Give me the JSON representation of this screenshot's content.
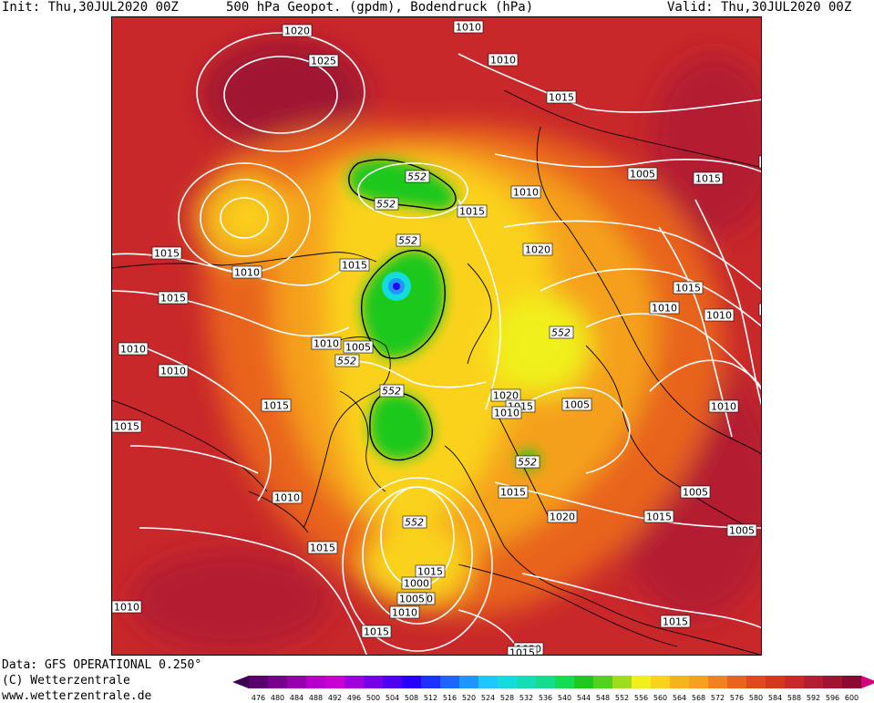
{
  "header": {
    "init": "Init: Thu,30JUL2020 00Z",
    "title": "500 hPa Geopot. (gpdm), Bodendruck (hPa)",
    "valid": "Valid: Thu,30JUL2020 00Z"
  },
  "footer": {
    "data_source": "Data: GFS OPERATIONAL 0.250°",
    "copyright": "(C) Wetterzentrale",
    "url": "www.wetterzentrale.de"
  },
  "colors": {
    "background_warm": "#c8282a",
    "ring_orange": "#e8641e",
    "ring_amber": "#f5a01e",
    "ring_yellow": "#fad21e",
    "trough_green": "#1ec81e",
    "trough_core": "#1e64ff",
    "contour": "#ffffff",
    "coast": "#000000"
  },
  "colorbar": {
    "labels": [
      "476",
      "480",
      "484",
      "488",
      "492",
      "496",
      "500",
      "504",
      "508",
      "512",
      "516",
      "520",
      "524",
      "528",
      "532",
      "536",
      "540",
      "544",
      "548",
      "552",
      "556",
      "560",
      "564",
      "568",
      "572",
      "576",
      "580",
      "584",
      "588",
      "592",
      "596",
      "600"
    ],
    "colors": [
      "#5a006e",
      "#78008c",
      "#9600aa",
      "#b400c8",
      "#c800d2",
      "#a000dc",
      "#7800e6",
      "#5000f0",
      "#2800fa",
      "#1e32ff",
      "#1e64ff",
      "#1e96ff",
      "#1ec8ff",
      "#14dcdc",
      "#14dcb4",
      "#14dc8c",
      "#14dc50",
      "#1ec81e",
      "#50d21e",
      "#a0dc1e",
      "#f0f01e",
      "#fad21e",
      "#f5b41e",
      "#f5a01e",
      "#ef821e",
      "#e8641e",
      "#de4a1e",
      "#d4371e",
      "#c8282a",
      "#b41e32",
      "#a01432",
      "#8c0a32"
    ],
    "under_color": "#3c0050",
    "over_color": "#d2007a"
  },
  "map": {
    "isobar_labels": [
      "1020",
      "1025",
      "1010",
      "1015",
      "1005",
      "1010",
      "1015",
      "1010",
      "1015",
      "1020",
      "1015",
      "1015",
      "1010",
      "1015",
      "1010",
      "1010",
      "1005",
      "1010",
      "1015",
      "1020",
      "1015",
      "1010",
      "1005",
      "1010",
      "1015",
      "1010",
      "1015",
      "1020",
      "1015",
      "1005",
      "1015",
      "1005",
      "1010",
      "1015",
      "1000",
      "1005",
      "1010",
      "1015",
      "1020",
      "1015",
      "1010",
      "1010",
      "1010",
      "1015",
      "1010",
      "1015",
      "1010"
    ],
    "height_labels": [
      "552",
      "552",
      "552",
      "552",
      "552",
      "552",
      "552",
      "552"
    ]
  }
}
